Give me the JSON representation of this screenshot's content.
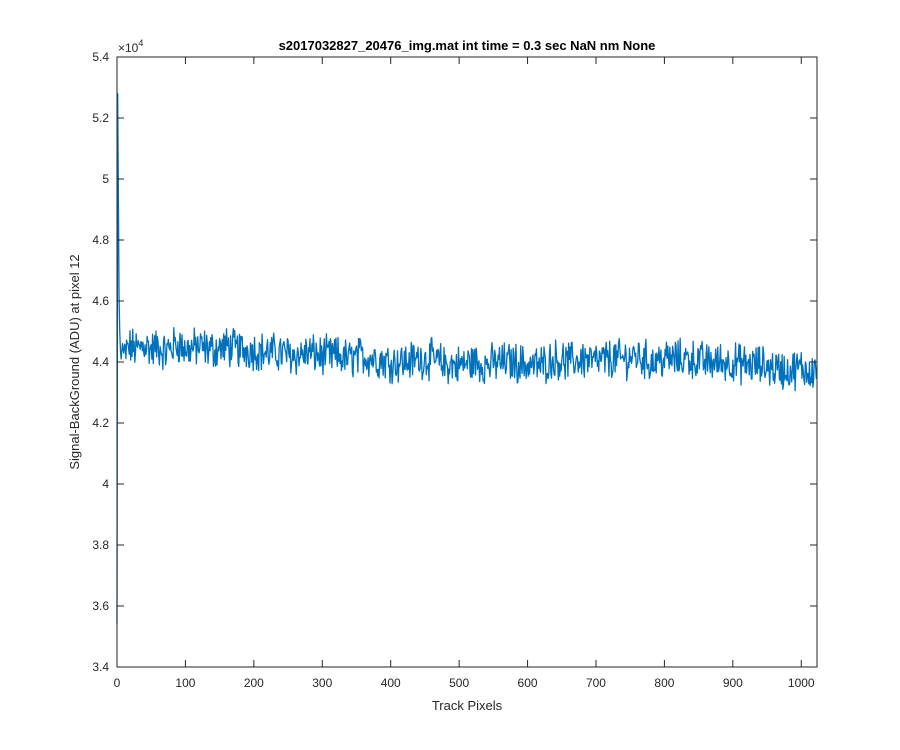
{
  "chart_data": {
    "type": "line",
    "title": "s2017032827_20476_img.mat int time = 0.3 sec  NaN nm None",
    "xlabel": "Track Pixels",
    "ylabel": "Signal-BackGround (ADU) at pixel 12",
    "y_exponent_base": "×10",
    "y_exponent_power": "4",
    "xlim": [
      0,
      1023
    ],
    "ylim": [
      3.4,
      5.4
    ],
    "xticks": [
      0,
      100,
      200,
      300,
      400,
      500,
      600,
      700,
      800,
      900,
      1000
    ],
    "xtick_labels": [
      "0",
      "100",
      "200",
      "300",
      "400",
      "500",
      "600",
      "700",
      "800",
      "900",
      "1000"
    ],
    "yticks": [
      3.4,
      3.6,
      3.8,
      4.0,
      4.2,
      4.4,
      4.6,
      4.8,
      5.0,
      5.2,
      5.4
    ],
    "ytick_labels": [
      "3.4",
      "3.6",
      "3.8",
      "4",
      "4.2",
      "4.4",
      "4.6",
      "4.8",
      "5",
      "5.2",
      "5.4"
    ],
    "grid": false,
    "line_color": "#0072BD",
    "series": [
      {
        "x": [
          0,
          1,
          2,
          3,
          4,
          5,
          6,
          8,
          10,
          15,
          20,
          30,
          40,
          50,
          60,
          70,
          80,
          90,
          100,
          120,
          140,
          160,
          180,
          200,
          220,
          240,
          260,
          280,
          300,
          320,
          340,
          360,
          380,
          400,
          420,
          440,
          460,
          480,
          500,
          520,
          540,
          560,
          580,
          600,
          620,
          640,
          660,
          680,
          700,
          720,
          740,
          760,
          780,
          800,
          820,
          840,
          860,
          880,
          900,
          920,
          940,
          960,
          980,
          1000,
          1010,
          1023
        ],
        "y": [
          3.54,
          5.28,
          4.95,
          4.62,
          4.5,
          4.44,
          4.41,
          4.46,
          4.42,
          4.44,
          4.45,
          4.44,
          4.46,
          4.44,
          4.45,
          4.43,
          4.45,
          4.46,
          4.44,
          4.45,
          4.44,
          4.45,
          4.44,
          4.44,
          4.43,
          4.43,
          4.42,
          4.43,
          4.42,
          4.42,
          4.41,
          4.42,
          4.41,
          4.4,
          4.4,
          4.41,
          4.41,
          4.39,
          4.39,
          4.4,
          4.39,
          4.4,
          4.4,
          4.39,
          4.39,
          4.41,
          4.4,
          4.41,
          4.4,
          4.41,
          4.41,
          4.42,
          4.4,
          4.41,
          4.41,
          4.41,
          4.4,
          4.4,
          4.4,
          4.39,
          4.39,
          4.38,
          4.37,
          4.38,
          4.37,
          4.38
        ]
      }
    ]
  }
}
